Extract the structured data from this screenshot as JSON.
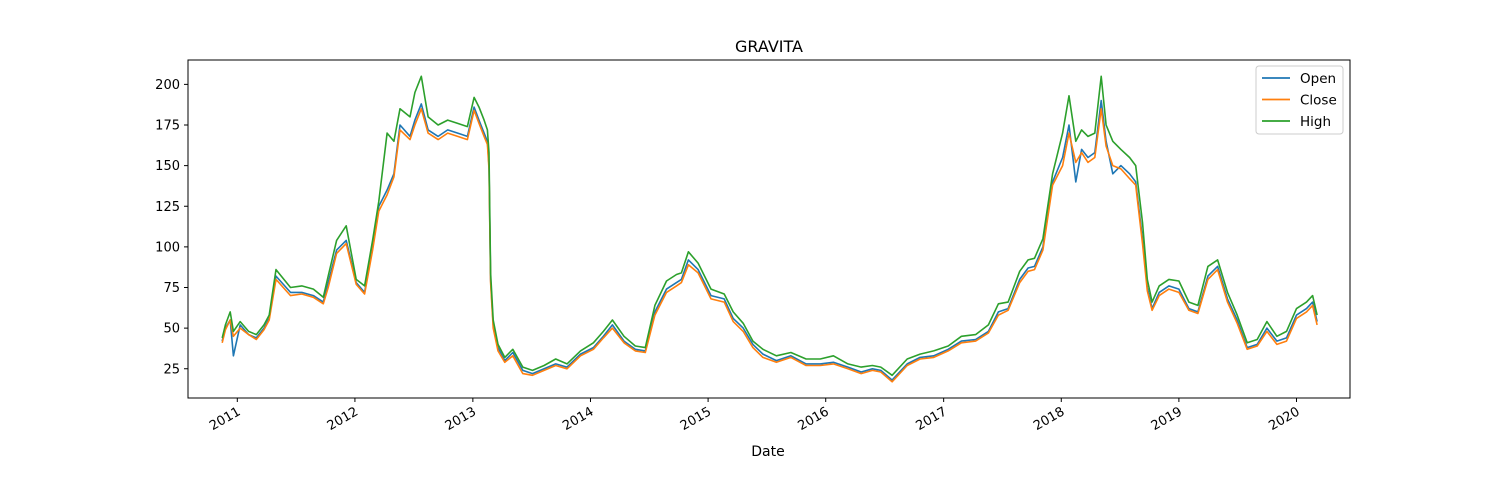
{
  "chart_data": {
    "type": "line",
    "title": "GRAVITA",
    "xlabel": "Date",
    "ylabel": "",
    "x_axis_type": "date",
    "xlim": [
      "2010-08-01",
      "2020-06-15"
    ],
    "ylim": [
      7,
      215
    ],
    "yticks": [
      25,
      50,
      75,
      100,
      125,
      150,
      175,
      200
    ],
    "xticks": [
      {
        "date": "2011-01-01",
        "label": "2011"
      },
      {
        "date": "2012-01-01",
        "label": "2012"
      },
      {
        "date": "2013-01-01",
        "label": "2013"
      },
      {
        "date": "2014-01-01",
        "label": "2014"
      },
      {
        "date": "2015-01-01",
        "label": "2015"
      },
      {
        "date": "2016-01-01",
        "label": "2016"
      },
      {
        "date": "2017-01-01",
        "label": "2017"
      },
      {
        "date": "2018-01-01",
        "label": "2018"
      },
      {
        "date": "2019-01-01",
        "label": "2019"
      },
      {
        "date": "2020-01-01",
        "label": "2020"
      }
    ],
    "grid": false,
    "legend_position": "top-right",
    "series_colors": {
      "Open": "#1f77b4",
      "Close": "#ff7f0e",
      "High": "#2ca02c"
    },
    "series": [
      {
        "name": "Open",
        "color": "#1f77b4",
        "x": [
          "2010-11-15",
          "2010-11-25",
          "2010-12-10",
          "2010-12-20",
          "2011-01-10",
          "2011-02-05",
          "2011-03-01",
          "2011-03-25",
          "2011-04-10",
          "2011-05-01",
          "2011-06-15",
          "2011-07-20",
          "2011-08-25",
          "2011-09-25",
          "2011-10-10",
          "2011-11-05",
          "2011-12-05",
          "2012-01-05",
          "2012-01-31",
          "2012-02-25",
          "2012-03-15",
          "2012-04-10",
          "2012-05-01",
          "2012-05-20",
          "2012-06-20",
          "2012-07-05",
          "2012-07-25",
          "2012-08-15",
          "2012-09-15",
          "2012-10-15",
          "2012-11-15",
          "2012-12-15",
          "2013-01-05",
          "2013-01-20",
          "2013-02-05",
          "2013-02-15",
          "2013-02-20",
          "2013-02-25",
          "2013-03-05",
          "2013-03-20",
          "2013-04-10",
          "2013-05-05",
          "2013-06-05",
          "2013-07-05",
          "2013-08-10",
          "2013-09-15",
          "2013-10-20",
          "2013-12-01",
          "2014-01-10",
          "2014-02-10",
          "2014-03-10",
          "2014-04-15",
          "2014-05-20",
          "2014-06-20",
          "2014-07-20",
          "2014-08-25",
          "2014-09-25",
          "2014-10-10",
          "2014-11-01",
          "2014-12-01",
          "2015-01-10",
          "2015-02-20",
          "2015-03-20",
          "2015-04-20",
          "2015-05-20",
          "2015-06-20",
          "2015-08-01",
          "2015-09-15",
          "2015-11-01",
          "2015-12-15",
          "2016-01-25",
          "2016-03-10",
          "2016-04-20",
          "2016-05-25",
          "2016-06-20",
          "2016-07-25",
          "2016-09-10",
          "2016-10-20",
          "2016-12-01",
          "2017-01-15",
          "2017-02-25",
          "2017-04-10",
          "2017-05-20",
          "2017-06-20",
          "2017-07-20",
          "2017-08-25",
          "2017-09-20",
          "2017-10-10",
          "2017-11-05",
          "2017-12-05",
          "2018-01-05",
          "2018-01-25",
          "2018-02-15",
          "2018-03-05",
          "2018-03-25",
          "2018-04-15",
          "2018-05-05",
          "2018-05-20",
          "2018-06-10",
          "2018-07-05",
          "2018-08-01",
          "2018-08-20",
          "2018-09-10",
          "2018-09-25",
          "2018-10-10",
          "2018-11-01",
          "2018-12-01",
          "2019-01-01",
          "2019-02-01",
          "2019-03-01",
          "2019-04-01",
          "2019-05-01",
          "2019-06-01",
          "2019-07-01",
          "2019-08-01",
          "2019-09-01",
          "2019-10-01",
          "2019-11-01",
          "2019-12-01",
          "2020-01-01",
          "2020-02-01",
          "2020-02-20",
          "2020-03-05"
        ],
        "values": [
          42,
          50,
          55,
          33,
          52,
          46,
          44,
          50,
          56,
          82,
          72,
          72,
          70,
          66,
          78,
          98,
          104,
          78,
          72,
          100,
          125,
          135,
          145,
          175,
          168,
          178,
          188,
          172,
          168,
          172,
          170,
          168,
          186,
          178,
          170,
          165,
          150,
          80,
          52,
          38,
          30,
          35,
          24,
          22,
          25,
          28,
          26,
          34,
          38,
          45,
          52,
          42,
          37,
          36,
          60,
          74,
          78,
          80,
          92,
          86,
          70,
          68,
          56,
          50,
          40,
          34,
          30,
          33,
          28,
          28,
          29,
          26,
          23,
          25,
          24,
          18,
          28,
          32,
          33,
          37,
          42,
          43,
          48,
          60,
          62,
          80,
          87,
          88,
          100,
          140,
          155,
          175,
          140,
          160,
          155,
          158,
          190,
          165,
          145,
          150,
          145,
          140,
          105,
          75,
          62,
          72,
          76,
          74,
          62,
          60,
          82,
          88,
          68,
          55,
          38,
          40,
          50,
          42,
          44,
          58,
          62,
          66,
          54
        ]
      },
      {
        "name": "Close",
        "color": "#ff7f0e",
        "x": [
          "2010-11-15",
          "2010-11-25",
          "2010-12-10",
          "2010-12-20",
          "2011-01-10",
          "2011-02-05",
          "2011-03-01",
          "2011-03-25",
          "2011-04-10",
          "2011-05-01",
          "2011-06-15",
          "2011-07-20",
          "2011-08-25",
          "2011-09-25",
          "2011-10-10",
          "2011-11-05",
          "2011-12-05",
          "2012-01-05",
          "2012-01-31",
          "2012-02-25",
          "2012-03-15",
          "2012-04-10",
          "2012-05-01",
          "2012-05-20",
          "2012-06-20",
          "2012-07-05",
          "2012-07-25",
          "2012-08-15",
          "2012-09-15",
          "2012-10-15",
          "2012-11-15",
          "2012-12-15",
          "2013-01-05",
          "2013-01-20",
          "2013-02-05",
          "2013-02-15",
          "2013-02-20",
          "2013-02-25",
          "2013-03-05",
          "2013-03-20",
          "2013-04-10",
          "2013-05-05",
          "2013-06-05",
          "2013-07-05",
          "2013-08-10",
          "2013-09-15",
          "2013-10-20",
          "2013-12-01",
          "2014-01-10",
          "2014-02-10",
          "2014-03-10",
          "2014-04-15",
          "2014-05-20",
          "2014-06-20",
          "2014-07-20",
          "2014-08-25",
          "2014-09-25",
          "2014-10-10",
          "2014-11-01",
          "2014-12-01",
          "2015-01-10",
          "2015-02-20",
          "2015-03-20",
          "2015-04-20",
          "2015-05-20",
          "2015-06-20",
          "2015-08-01",
          "2015-09-15",
          "2015-11-01",
          "2015-12-15",
          "2016-01-25",
          "2016-03-10",
          "2016-04-20",
          "2016-05-25",
          "2016-06-20",
          "2016-07-25",
          "2016-09-10",
          "2016-10-20",
          "2016-12-01",
          "2017-01-15",
          "2017-02-25",
          "2017-04-10",
          "2017-05-20",
          "2017-06-20",
          "2017-07-20",
          "2017-08-25",
          "2017-09-20",
          "2017-10-10",
          "2017-11-05",
          "2017-12-05",
          "2018-01-05",
          "2018-01-25",
          "2018-02-15",
          "2018-03-05",
          "2018-03-25",
          "2018-04-15",
          "2018-05-05",
          "2018-05-20",
          "2018-06-10",
          "2018-07-05",
          "2018-08-01",
          "2018-08-20",
          "2018-09-10",
          "2018-09-25",
          "2018-10-10",
          "2018-11-01",
          "2018-12-01",
          "2019-01-01",
          "2019-02-01",
          "2019-03-01",
          "2019-04-01",
          "2019-05-01",
          "2019-06-01",
          "2019-07-01",
          "2019-08-01",
          "2019-09-01",
          "2019-10-01",
          "2019-11-01",
          "2019-12-01",
          "2020-01-01",
          "2020-02-01",
          "2020-02-20",
          "2020-03-05"
        ],
        "values": [
          41,
          49,
          55,
          45,
          50,
          46,
          43,
          49,
          55,
          80,
          70,
          71,
          69,
          65,
          75,
          96,
          102,
          77,
          71,
          98,
          122,
          132,
          143,
          172,
          166,
          175,
          185,
          170,
          166,
          170,
          168,
          166,
          184,
          176,
          168,
          163,
          148,
          78,
          50,
          36,
          29,
          33,
          22,
          21,
          24,
          27,
          25,
          33,
          37,
          44,
          50,
          41,
          36,
          35,
          58,
          72,
          76,
          78,
          89,
          84,
          68,
          66,
          54,
          48,
          38,
          32,
          29,
          32,
          27,
          27,
          28,
          25,
          22,
          24,
          23,
          17,
          27,
          31,
          32,
          36,
          41,
          42,
          47,
          58,
          61,
          78,
          85,
          86,
          98,
          138,
          150,
          170,
          152,
          158,
          152,
          155,
          185,
          162,
          150,
          148,
          142,
          138,
          102,
          73,
          61,
          70,
          74,
          72,
          61,
          59,
          80,
          86,
          66,
          53,
          37,
          39,
          48,
          40,
          42,
          56,
          60,
          64,
          52
        ]
      },
      {
        "name": "High",
        "color": "#2ca02c",
        "x": [
          "2010-11-15",
          "2010-11-25",
          "2010-12-10",
          "2010-12-20",
          "2011-01-10",
          "2011-02-05",
          "2011-03-01",
          "2011-03-25",
          "2011-04-10",
          "2011-05-01",
          "2011-06-15",
          "2011-07-20",
          "2011-08-25",
          "2011-09-25",
          "2011-10-10",
          "2011-11-05",
          "2011-12-05",
          "2012-01-05",
          "2012-01-31",
          "2012-02-25",
          "2012-03-15",
          "2012-04-10",
          "2012-05-01",
          "2012-05-20",
          "2012-06-20",
          "2012-07-05",
          "2012-07-25",
          "2012-08-15",
          "2012-09-15",
          "2012-10-15",
          "2012-11-15",
          "2012-12-15",
          "2013-01-05",
          "2013-01-20",
          "2013-02-05",
          "2013-02-15",
          "2013-02-20",
          "2013-02-25",
          "2013-03-05",
          "2013-03-20",
          "2013-04-10",
          "2013-05-05",
          "2013-06-05",
          "2013-07-05",
          "2013-08-10",
          "2013-09-15",
          "2013-10-20",
          "2013-12-01",
          "2014-01-10",
          "2014-02-10",
          "2014-03-10",
          "2014-04-15",
          "2014-05-20",
          "2014-06-20",
          "2014-07-20",
          "2014-08-25",
          "2014-09-25",
          "2014-10-10",
          "2014-11-01",
          "2014-12-01",
          "2015-01-10",
          "2015-02-20",
          "2015-03-20",
          "2015-04-20",
          "2015-05-20",
          "2015-06-20",
          "2015-08-01",
          "2015-09-15",
          "2015-11-01",
          "2015-12-15",
          "2016-01-25",
          "2016-03-10",
          "2016-04-20",
          "2016-05-25",
          "2016-06-20",
          "2016-07-25",
          "2016-09-10",
          "2016-10-20",
          "2016-12-01",
          "2017-01-15",
          "2017-02-25",
          "2017-04-10",
          "2017-05-20",
          "2017-06-20",
          "2017-07-20",
          "2017-08-25",
          "2017-09-20",
          "2017-10-10",
          "2017-11-05",
          "2017-12-05",
          "2018-01-05",
          "2018-01-25",
          "2018-02-15",
          "2018-03-05",
          "2018-03-25",
          "2018-04-15",
          "2018-05-05",
          "2018-05-20",
          "2018-06-10",
          "2018-07-05",
          "2018-08-01",
          "2018-08-20",
          "2018-09-10",
          "2018-09-25",
          "2018-10-10",
          "2018-11-01",
          "2018-12-01",
          "2019-01-01",
          "2019-02-01",
          "2019-03-01",
          "2019-04-01",
          "2019-05-01",
          "2019-06-01",
          "2019-07-01",
          "2019-08-01",
          "2019-09-01",
          "2019-10-01",
          "2019-11-01",
          "2019-12-01",
          "2020-01-01",
          "2020-02-01",
          "2020-02-20",
          "2020-03-05"
        ],
        "values": [
          44,
          52,
          60,
          48,
          54,
          48,
          46,
          52,
          58,
          86,
          75,
          76,
          74,
          69,
          82,
          104,
          113,
          80,
          76,
          104,
          128,
          170,
          165,
          185,
          180,
          195,
          205,
          180,
          175,
          178,
          176,
          174,
          192,
          186,
          178,
          172,
          158,
          84,
          55,
          40,
          32,
          37,
          26,
          24,
          27,
          31,
          28,
          36,
          41,
          48,
          55,
          45,
          39,
          38,
          64,
          79,
          83,
          84,
          97,
          90,
          74,
          71,
          60,
          53,
          42,
          37,
          33,
          35,
          31,
          31,
          33,
          28,
          26,
          27,
          26,
          21,
          31,
          34,
          36,
          39,
          45,
          46,
          52,
          65,
          66,
          85,
          92,
          93,
          105,
          145,
          170,
          193,
          165,
          172,
          168,
          170,
          205,
          175,
          165,
          160,
          155,
          150,
          115,
          80,
          66,
          76,
          80,
          79,
          66,
          64,
          88,
          92,
          72,
          58,
          41,
          43,
          54,
          45,
          48,
          62,
          66,
          70,
          58
        ]
      }
    ]
  }
}
